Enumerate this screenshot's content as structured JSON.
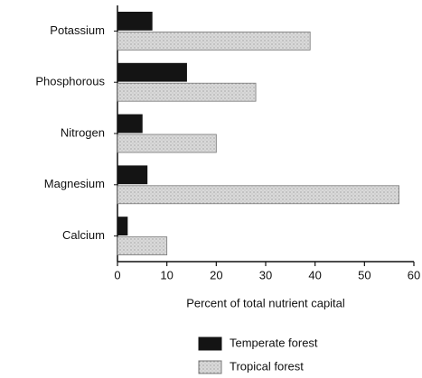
{
  "chart_data": {
    "type": "hbar",
    "categories": [
      "Potassium",
      "Phosphorous",
      "Nitrogen",
      "Magnesium",
      "Calcium"
    ],
    "series": [
      {
        "name": "Temperate forest",
        "color": "#141414",
        "values": [
          7,
          14,
          5,
          6,
          2
        ]
      },
      {
        "name": "Tropical forest",
        "color": "#d9d9d9",
        "values": [
          39,
          28,
          20,
          57,
          10
        ]
      }
    ],
    "xlabel": "Percent of total nutrient capital",
    "xlim": [
      0,
      60
    ],
    "xticks": [
      0,
      10,
      20,
      30,
      40,
      50,
      60
    ],
    "grid": false,
    "legend": "bottom"
  }
}
